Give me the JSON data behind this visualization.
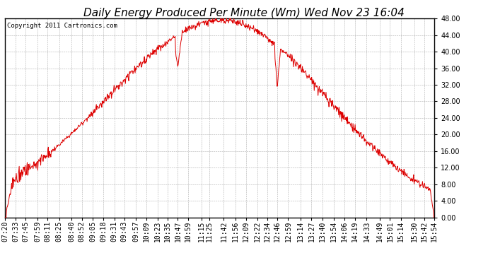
{
  "title": "Daily Energy Produced Per Minute (Wm) Wed Nov 23 16:04",
  "copyright": "Copyright 2011 Cartronics.com",
  "line_color": "#dd0000",
  "background_color": "#ffffff",
  "plot_background": "#ffffff",
  "grid_color": "#999999",
  "ylim": [
    0,
    48
  ],
  "yticks": [
    0.0,
    4.0,
    8.0,
    12.0,
    16.0,
    20.0,
    24.0,
    28.0,
    32.0,
    36.0,
    40.0,
    44.0,
    48.0
  ],
  "xtick_labels": [
    "07:20",
    "07:33",
    "07:45",
    "07:59",
    "08:11",
    "08:25",
    "08:40",
    "08:52",
    "09:05",
    "09:18",
    "09:31",
    "09:43",
    "09:57",
    "10:09",
    "10:23",
    "10:35",
    "10:47",
    "10:59",
    "11:15",
    "11:25",
    "11:42",
    "11:56",
    "12:09",
    "12:22",
    "12:34",
    "12:46",
    "12:59",
    "13:14",
    "13:27",
    "13:40",
    "13:54",
    "14:06",
    "14:19",
    "14:33",
    "14:49",
    "15:01",
    "15:14",
    "15:30",
    "15:42",
    "15:54"
  ],
  "title_fontsize": 11,
  "tick_fontsize": 7,
  "copyright_fontsize": 6.5
}
